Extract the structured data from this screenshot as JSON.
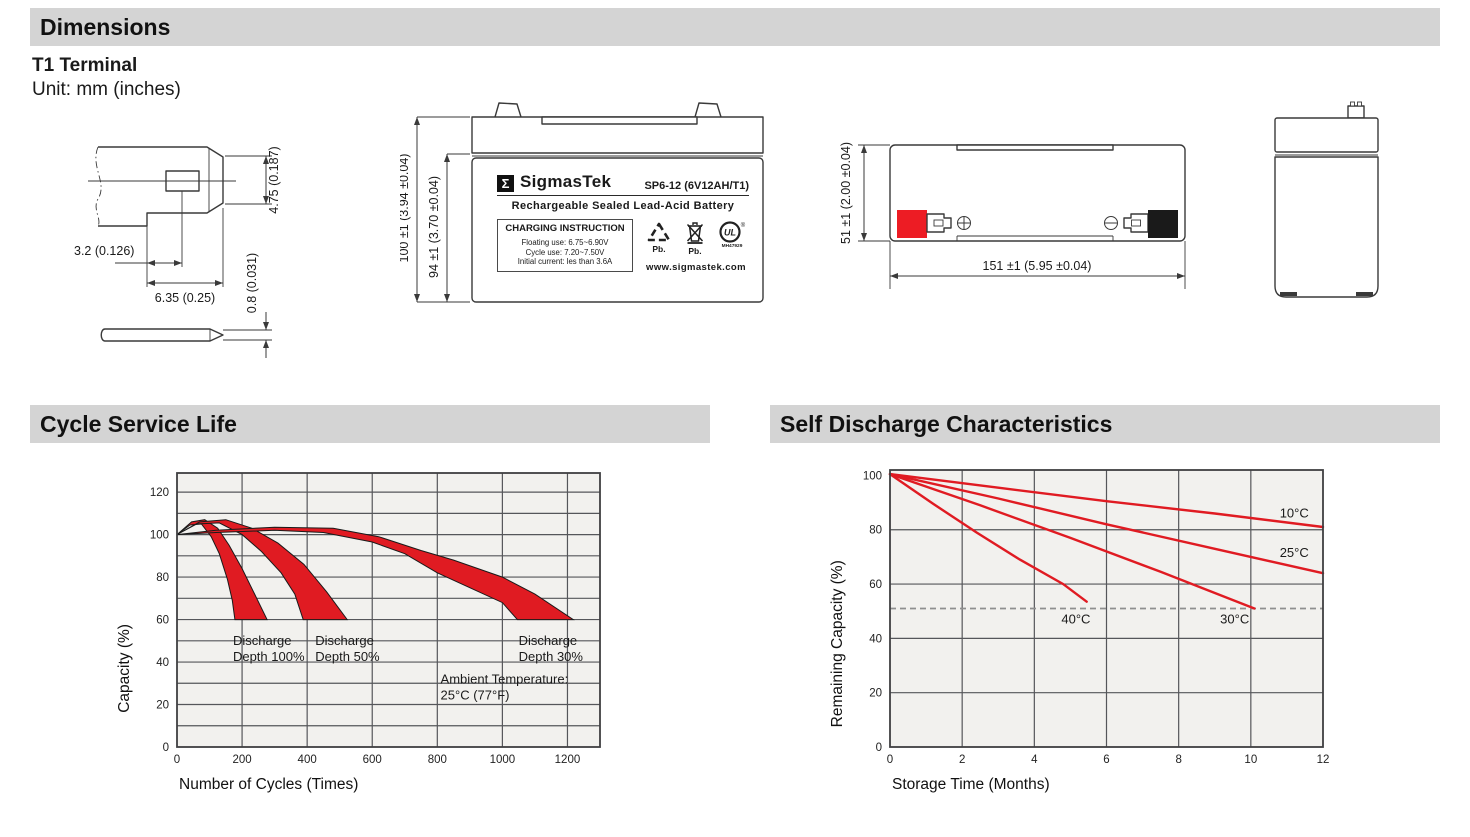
{
  "page": {
    "section_dimensions": "Dimensions",
    "terminal_type": "T1 Terminal",
    "unit_note": "Unit: mm (inches)",
    "section_cycle": "Cycle Service Life",
    "section_self_discharge": "Self Discharge Characteristics"
  },
  "dimensions_drawing": {
    "terminal_detail": {
      "height": "4.75 (0.187)",
      "offset": "3.2 (0.126)",
      "width": "6.35 (0.25)",
      "thickness": "0.8 (0.031)"
    },
    "front_view": {
      "overall_height": "100 ±1 (3.94 ±0.04)",
      "container_height": "94 ±1 (3.70 ±0.04)"
    },
    "top_view": {
      "width": "51 ±1 (2.00 ±0.04)",
      "length": "151 ±1 (5.95 ±0.04)"
    },
    "label": {
      "logo_glyph": "Σ",
      "brand": "SigmasTek",
      "model": "SP6-12 (6V12AH/T1)",
      "subtitle": "Rechargeable Sealed Lead-Acid Battery",
      "charging_title": "CHARGING INSTRUCTION",
      "charging_lines": [
        "Floating use: 6.75~6.90V",
        "Cycle use: 7.20~7.50V",
        "Initial current: les than 3.6A"
      ],
      "pb_recycle": "Pb.",
      "pb_bin": "Pb.",
      "ul_icon": "UL",
      "ul_code": "MH47929",
      "website": "www.sigmastek.com"
    },
    "terminal_colors": {
      "positive": "#ed1c24",
      "negative": "#1a1a1a"
    }
  },
  "chart_data": [
    {
      "type": "area",
      "title": "Cycle Service Life",
      "xlabel": "Number of Cycles (Times)",
      "ylabel": "Capacity (%)",
      "ylabel_center": 37,
      "xlim": [
        0,
        1300
      ],
      "ylim": [
        0,
        129
      ],
      "xticks": [
        0,
        200,
        400,
        600,
        800,
        1000,
        1200
      ],
      "yticks": [
        0,
        20,
        40,
        60,
        80,
        100,
        120
      ],
      "grid_x": [
        200,
        400,
        600,
        800,
        1000,
        1200
      ],
      "grid_y": [
        10,
        20,
        30,
        40,
        50,
        60,
        70,
        80,
        90,
        100,
        110,
        120
      ],
      "bands": [
        {
          "name": "Discharge Depth 100%",
          "upper": [
            [
              0,
              100
            ],
            [
              45,
              106
            ],
            [
              85,
              107
            ],
            [
              125,
              103
            ],
            [
              160,
              95
            ],
            [
              200,
              84
            ],
            [
              245,
              70
            ],
            [
              277,
              60
            ]
          ],
          "lower": [
            [
              0,
              100
            ],
            [
              40,
              104.5
            ],
            [
              75,
              105
            ],
            [
              105,
              99
            ],
            [
              130,
              91
            ],
            [
              155,
              79
            ],
            [
              170,
              69
            ],
            [
              178,
              60
            ]
          ]
        },
        {
          "name": "Discharge Depth 50%",
          "upper": [
            [
              0,
              100
            ],
            [
              70,
              106
            ],
            [
              150,
              107
            ],
            [
              230,
              103
            ],
            [
              310,
              96
            ],
            [
              390,
              86
            ],
            [
              460,
              73
            ],
            [
              523,
              60
            ]
          ],
          "lower": [
            [
              0,
              100
            ],
            [
              60,
              105
            ],
            [
              130,
              105.5
            ],
            [
              200,
              100
            ],
            [
              260,
              92
            ],
            [
              320,
              82
            ],
            [
              362,
              72
            ],
            [
              388,
              60
            ]
          ]
        },
        {
          "name": "Discharge Depth 30%",
          "upper": [
            [
              0,
              100
            ],
            [
              120,
              102
            ],
            [
              300,
              103.5
            ],
            [
              480,
              103
            ],
            [
              620,
              99
            ],
            [
              750,
              92.5
            ],
            [
              850,
              88
            ],
            [
              1000,
              80
            ],
            [
              1100,
              72
            ],
            [
              1218,
              60
            ]
          ],
          "lower": [
            [
              0,
              100
            ],
            [
              120,
              101
            ],
            [
              300,
              102
            ],
            [
              450,
              101
            ],
            [
              600,
              96.5
            ],
            [
              700,
              91
            ],
            [
              800,
              82
            ],
            [
              900,
              75
            ],
            [
              1000,
              68
            ],
            [
              1046,
              60
            ]
          ]
        }
      ],
      "annotations": [
        {
          "x": 172,
          "y": 48,
          "lines": [
            "Discharge",
            "Depth 100%"
          ]
        },
        {
          "x": 425,
          "y": 48,
          "lines": [
            "Discharge",
            "Depth 50%"
          ]
        },
        {
          "x": 1050,
          "y": 48,
          "lines": [
            "Discharge",
            "Depth 30%"
          ]
        },
        {
          "x": 810,
          "y": 30,
          "lines": [
            "Ambient Temperature:",
            "25°C (77°F)"
          ]
        }
      ],
      "legend_position": "none",
      "grid": true,
      "style": {
        "accent": "#e01b22",
        "plot_bg": "#f2f1ee",
        "grid": "#55565a",
        "border": "#3f3f41",
        "dashed": "#8f8f8f"
      }
    },
    {
      "type": "line",
      "title": "Self Discharge Characteristics",
      "xlabel": "Storage Time (Months)",
      "ylabel": "Remaining Capacity (%)",
      "ylabel_center": 38,
      "xlim": [
        0,
        12
      ],
      "ylim": [
        0,
        102
      ],
      "xticks": [
        0,
        2,
        4,
        6,
        8,
        10,
        12
      ],
      "yticks": [
        0,
        20,
        40,
        60,
        80,
        100
      ],
      "grid_x": [
        2,
        4,
        6,
        8,
        10
      ],
      "grid_y": [
        20,
        40,
        60,
        80
      ],
      "dashed_line_y": 51,
      "series": [
        {
          "name": "10°C",
          "points": [
            [
              0,
              100.5
            ],
            [
              3,
              95.5
            ],
            [
              6,
              90.5
            ],
            [
              9,
              86
            ],
            [
              12,
              81
            ]
          ],
          "label_x": 10.8,
          "label_y": 84.5
        },
        {
          "name": "25°C",
          "points": [
            [
              0,
              100.5
            ],
            [
              3,
              91.5
            ],
            [
              6,
              82
            ],
            [
              9,
              73
            ],
            [
              12,
              64
            ]
          ],
          "label_x": 10.8,
          "label_y": 70
        },
        {
          "name": "30°C",
          "points": [
            [
              0,
              100.5
            ],
            [
              2.5,
              89
            ],
            [
              5,
              77
            ],
            [
              7.5,
              64.5
            ],
            [
              10.1,
              51
            ]
          ],
          "label_x": 9.15,
          "label_y": 45.5
        },
        {
          "name": "40°C",
          "points": [
            [
              0,
              100.5
            ],
            [
              1.2,
              89.5
            ],
            [
              2.4,
              79
            ],
            [
              3.6,
              69
            ],
            [
              4.8,
              60
            ],
            [
              5.45,
              53.5
            ]
          ],
          "label_x": 4.75,
          "label_y": 45.5
        }
      ],
      "legend_position": "inline-labels",
      "grid": true,
      "style": {
        "accent": "#e01b22",
        "plot_bg": "#f2f1ee",
        "grid": "#55565a",
        "border": "#3f3f41",
        "dashed": "#8f8f8f"
      }
    }
  ]
}
